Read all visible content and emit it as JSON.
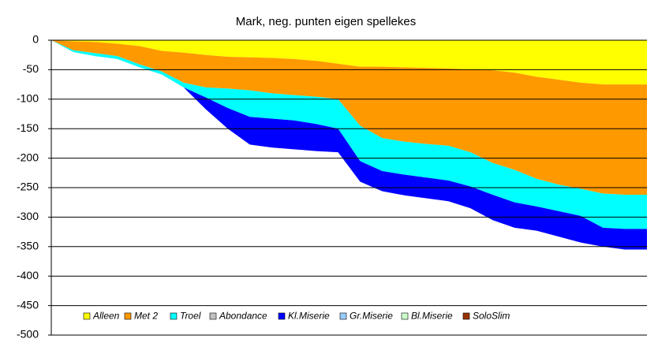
{
  "chart_data": {
    "type": "stacked_area",
    "title": "Mark, neg. punten eigen spellekes",
    "categories": [
      null,
      null,
      null,
      null,
      null,
      null,
      null,
      null,
      null,
      null,
      null,
      null,
      null,
      null,
      null,
      null,
      null,
      null,
      null,
      null,
      null,
      null,
      null,
      null,
      null,
      null,
      null,
      null
    ],
    "ylim": [
      -500,
      0
    ],
    "yticks": [
      0,
      -50,
      -100,
      -150,
      -200,
      -250,
      -300,
      -350,
      -400,
      -450,
      -500
    ],
    "grid": true,
    "legend": "bottom",
    "series": [
      {
        "name": "Alleen",
        "color": "#ffff00",
        "values": [
          0,
          -2,
          -3,
          -6,
          -10,
          -18,
          -21,
          -25,
          -28,
          -29,
          -30,
          -32,
          -35,
          -40,
          -45,
          -45,
          -46,
          -47,
          -48,
          -50,
          -51,
          -55,
          -62,
          -67,
          -72,
          -75,
          -75,
          -75
        ]
      },
      {
        "name": "Met 2",
        "color": "#ff9900",
        "values": [
          0,
          -15,
          -19,
          -21,
          -31,
          -35,
          -51,
          -55,
          -54,
          -56,
          -60,
          -61,
          -61,
          -60,
          -100,
          -121,
          -126,
          -129,
          -131,
          -140,
          -157,
          -165,
          -173,
          -178,
          -180,
          -185,
          -187,
          -187
        ]
      },
      {
        "name": "Troel",
        "color": "#00ffff",
        "values": [
          0,
          -3,
          -5,
          -5,
          -5,
          -5,
          -8,
          -17,
          -33,
          -45,
          -43,
          -43,
          -46,
          -50,
          -60,
          -56,
          -56,
          -57,
          -59,
          -58,
          -54,
          -55,
          -47,
          -45,
          -46,
          -58,
          -58,
          -58
        ]
      },
      {
        "name": "Abondance",
        "color": "#c0c0c0",
        "values": [
          0,
          0,
          0,
          0,
          0,
          0,
          0,
          0,
          0,
          0,
          0,
          0,
          0,
          0,
          0,
          0,
          0,
          0,
          0,
          0,
          0,
          0,
          0,
          0,
          0,
          0,
          0,
          0
        ]
      },
      {
        "name": "Kl.Miserie",
        "color": "#0000ff",
        "values": [
          0,
          0,
          0,
          0,
          0,
          0,
          0,
          -20,
          -35,
          -47,
          -49,
          -49,
          -46,
          -40,
          -35,
          -34,
          -35,
          -35,
          -35,
          -37,
          -43,
          -43,
          -41,
          -43,
          -45,
          -32,
          -35,
          -35
        ]
      },
      {
        "name": "Gr.Miserie",
        "color": "#99ccff",
        "values": [
          0,
          0,
          0,
          0,
          0,
          0,
          0,
          0,
          0,
          0,
          0,
          0,
          0,
          0,
          0,
          0,
          0,
          0,
          0,
          0,
          0,
          0,
          0,
          0,
          0,
          0,
          0,
          0
        ]
      },
      {
        "name": "Bl.Miserie",
        "color": "#ccffcc",
        "values": [
          0,
          0,
          0,
          0,
          0,
          0,
          0,
          0,
          0,
          0,
          0,
          0,
          0,
          0,
          0,
          0,
          0,
          0,
          0,
          0,
          0,
          0,
          0,
          0,
          0,
          0,
          0,
          0
        ]
      },
      {
        "name": "SoloSlim",
        "color": "#993300",
        "values": [
          0,
          0,
          0,
          0,
          0,
          0,
          0,
          0,
          0,
          0,
          0,
          0,
          0,
          0,
          0,
          0,
          0,
          0,
          0,
          0,
          0,
          0,
          0,
          0,
          0,
          0,
          0,
          0
        ]
      }
    ]
  }
}
